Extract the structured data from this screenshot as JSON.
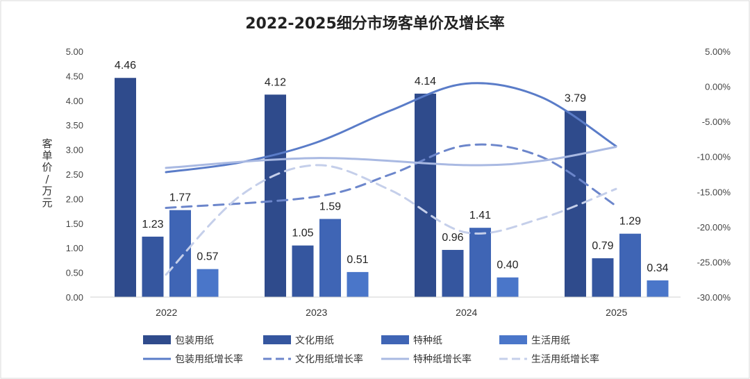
{
  "chart_data": {
    "type": "bar",
    "title": "2022-2025细分市场客单价及增长率",
    "ylabel": "客单价/万元",
    "categories": [
      "2022",
      "2023",
      "2024",
      "2025"
    ],
    "ylim": [
      0,
      5
    ],
    "y_ticks": [
      "5.00",
      "4.50",
      "4.00",
      "3.50",
      "3.00",
      "2.50",
      "2.00",
      "1.50",
      "1.00",
      "0.50",
      "0.00"
    ],
    "y2lim": [
      -30,
      5
    ],
    "y2_ticks": [
      "5.00%",
      "0.00%",
      "-5.00%",
      "-10.00%",
      "-15.00%",
      "-20.00%",
      "-25.00%",
      "-30.00%"
    ],
    "series": [
      {
        "name": "包装用纸",
        "color": "#2f4b8c",
        "values": [
          4.46,
          4.12,
          4.14,
          3.79
        ],
        "labels": [
          "4.46",
          "4.12",
          "4.14",
          "3.79"
        ]
      },
      {
        "name": "文化用纸",
        "color": "#35569f",
        "values": [
          1.23,
          1.05,
          0.96,
          0.79
        ],
        "labels": [
          "1.23",
          "1.05",
          "0.96",
          "0.79"
        ]
      },
      {
        "name": "特种纸",
        "color": "#3f65b5",
        "values": [
          1.77,
          1.59,
          1.41,
          1.29
        ],
        "labels": [
          "1.77",
          "1.59",
          "1.41",
          "1.29"
        ]
      },
      {
        "name": "生活用纸",
        "color": "#4a76c9",
        "values": [
          0.57,
          0.51,
          0.4,
          0.34
        ],
        "labels": [
          "0.57",
          "0.51",
          "0.40",
          "0.34"
        ]
      }
    ],
    "line_series": [
      {
        "name": "包装用纸增长率",
        "color": "#5a7cc8",
        "dash": "solid",
        "x": [
          0.0,
          0.5,
          1.0,
          1.5,
          2.0,
          2.5,
          3.0
        ],
        "values": [
          -12.2,
          -10.8,
          -8.0,
          -3.4,
          0.4,
          -1.5,
          -8.5
        ]
      },
      {
        "name": "文化用纸增长率",
        "color": "#6c86cb",
        "dash": "dash",
        "x": [
          0.0,
          1.0,
          1.5,
          2.0,
          2.5,
          3.0
        ],
        "values": [
          -17.3,
          -15.7,
          -12.5,
          -8.4,
          -10.0,
          -17.0
        ]
      },
      {
        "name": "特种纸增长率",
        "color": "#a9b9e2",
        "dash": "solid",
        "x": [
          0.0,
          1.0,
          2.0,
          2.5,
          3.0
        ],
        "values": [
          -11.6,
          -10.2,
          -11.2,
          -10.6,
          -8.6
        ]
      },
      {
        "name": "生活用纸增长率",
        "color": "#c5cfea",
        "dash": "dash",
        "x": [
          0.0,
          0.5,
          1.0,
          1.5,
          2.0,
          2.5,
          3.0
        ],
        "values": [
          -26.8,
          -15.5,
          -11.2,
          -14.8,
          -20.8,
          -18.8,
          -14.6
        ]
      }
    ],
    "legend_position": "bottom"
  }
}
